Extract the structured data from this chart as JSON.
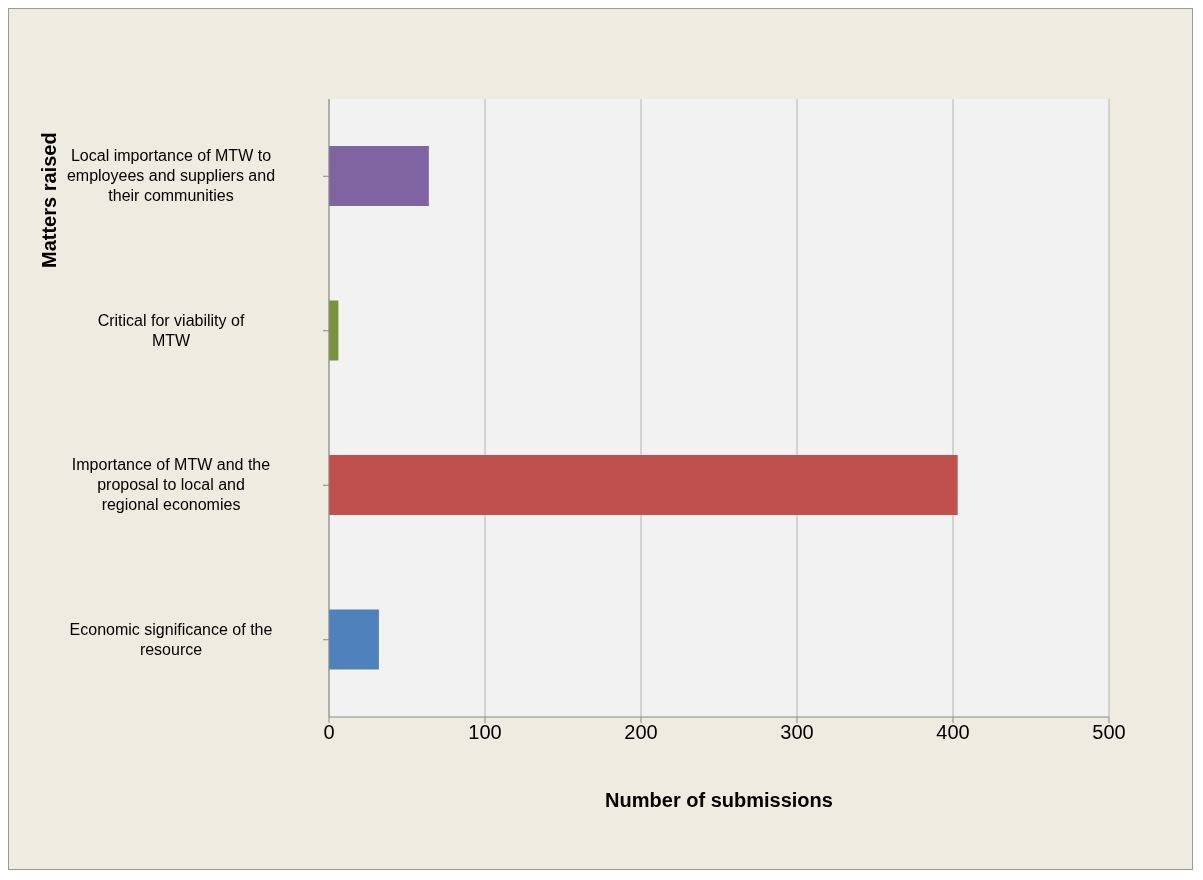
{
  "chart_data": {
    "type": "bar",
    "orientation": "horizontal",
    "xlabel": "Number of submissions",
    "ylabel": "Matters raised",
    "categories": [
      "Local importance of MTW to employees and suppliers and their communities",
      "Critical for viability of MTW",
      "Importance of MTW and the proposal to local and regional economies",
      "Economic significance of the resource"
    ],
    "values": [
      64,
      6,
      403,
      32
    ],
    "colors": [
      "#8064a2",
      "#77933c",
      "#c0504d",
      "#4f81bd"
    ],
    "xlim": [
      0,
      500
    ],
    "xticks": [
      0,
      100,
      200,
      300,
      400,
      500
    ],
    "grid": "x",
    "legend": false
  }
}
